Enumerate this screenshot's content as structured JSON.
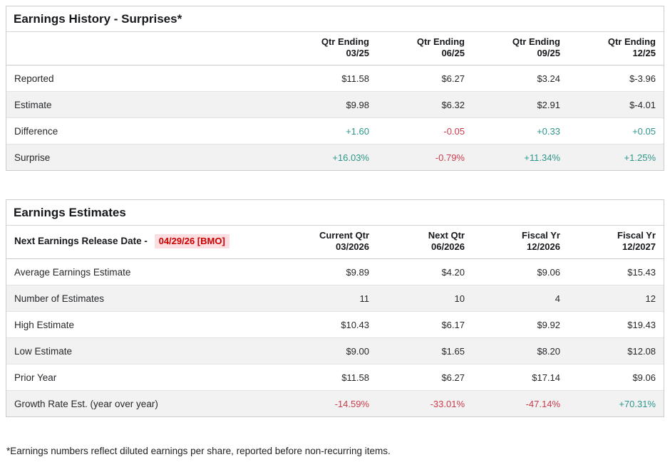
{
  "colors": {
    "positive_value": "#2d968c",
    "negative_value": "#cc3a4c",
    "release_date_text": "#cc0000",
    "release_date_bg": "#fcdee0",
    "row_stripe": "#f2f2f2",
    "card_border": "#cccccc"
  },
  "earnings_history": {
    "title": "Earnings History - Surprises*",
    "columns": [
      {
        "line1": "Qtr Ending",
        "line2": "03/25"
      },
      {
        "line1": "Qtr Ending",
        "line2": "06/25"
      },
      {
        "line1": "Qtr Ending",
        "line2": "09/25"
      },
      {
        "line1": "Qtr Ending",
        "line2": "12/25"
      }
    ],
    "rows": [
      {
        "label": "Reported",
        "values": [
          "$11.58",
          "$6.27",
          "$3.24",
          "$-3.96"
        ]
      },
      {
        "label": "Estimate",
        "values": [
          "$9.98",
          "$6.32",
          "$2.91",
          "$-4.01"
        ]
      },
      {
        "label": "Difference",
        "values": [
          "+1.60",
          "-0.05",
          "+0.33",
          "+0.05"
        ],
        "tones": [
          "pos",
          "neg",
          "pos",
          "pos"
        ]
      },
      {
        "label": "Surprise",
        "values": [
          "+16.03%",
          "-0.79%",
          "+11.34%",
          "+1.25%"
        ],
        "tones": [
          "pos",
          "neg",
          "pos",
          "pos"
        ]
      }
    ]
  },
  "earnings_estimates": {
    "title": "Earnings Estimates",
    "release_label": "Next Earnings Release Date -",
    "release_date": "04/29/26 [BMO]",
    "columns": [
      {
        "line1": "Current Qtr",
        "line2": "03/2026"
      },
      {
        "line1": "Next Qtr",
        "line2": "06/2026"
      },
      {
        "line1": "Fiscal Yr",
        "line2": "12/2026"
      },
      {
        "line1": "Fiscal Yr",
        "line2": "12/2027"
      }
    ],
    "rows": [
      {
        "label": "Average Earnings Estimate",
        "values": [
          "$9.89",
          "$4.20",
          "$9.06",
          "$15.43"
        ]
      },
      {
        "label": "Number of Estimates",
        "values": [
          "11",
          "10",
          "4",
          "12"
        ]
      },
      {
        "label": "High Estimate",
        "values": [
          "$10.43",
          "$6.17",
          "$9.92",
          "$19.43"
        ]
      },
      {
        "label": "Low Estimate",
        "values": [
          "$9.00",
          "$1.65",
          "$8.20",
          "$12.08"
        ]
      },
      {
        "label": "Prior Year",
        "values": [
          "$11.58",
          "$6.27",
          "$17.14",
          "$9.06"
        ]
      },
      {
        "label": "Growth Rate Est. (year over year)",
        "values": [
          "-14.59%",
          "-33.01%",
          "-47.14%",
          "+70.31%"
        ],
        "tones": [
          "neg",
          "neg",
          "neg",
          "pos"
        ]
      }
    ]
  },
  "footnote": "*Earnings numbers reflect diluted earnings per share, reported before non-recurring items."
}
